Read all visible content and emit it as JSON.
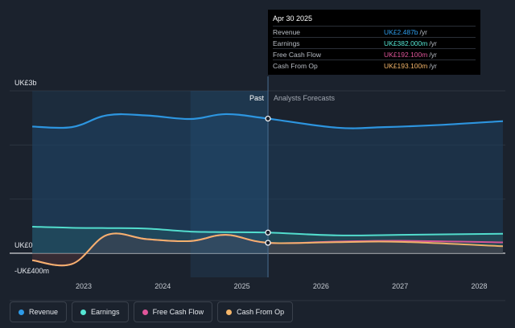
{
  "chart_data": {
    "type": "area",
    "y_labels": {
      "top": "UK£3b",
      "zero": "UK£0",
      "bottom": "-UK£400m"
    },
    "ylim": [
      -400,
      3000
    ],
    "x_ticks": [
      "2023",
      "2024",
      "2025",
      "2026",
      "2027",
      "2028"
    ],
    "divider_labels": {
      "past": "Past",
      "forecast": "Analysts Forecasts"
    },
    "divider_date": 2025.33,
    "series": [
      {
        "name": "Revenue",
        "color": "#2e9be8",
        "points": [
          [
            2022.35,
            2340
          ],
          [
            2022.85,
            2330
          ],
          [
            2023.3,
            2550
          ],
          [
            2023.8,
            2545
          ],
          [
            2024.35,
            2480
          ],
          [
            2024.8,
            2570
          ],
          [
            2025.33,
            2487
          ],
          [
            2026.2,
            2320
          ],
          [
            2026.8,
            2330
          ],
          [
            2027.5,
            2370
          ],
          [
            2028.3,
            2440
          ]
        ]
      },
      {
        "name": "Earnings",
        "color": "#55e6d4",
        "points": [
          [
            2022.35,
            490
          ],
          [
            2022.85,
            470
          ],
          [
            2023.3,
            465
          ],
          [
            2023.8,
            455
          ],
          [
            2024.35,
            400
          ],
          [
            2024.8,
            390
          ],
          [
            2025.33,
            382
          ],
          [
            2026.2,
            330
          ],
          [
            2027.0,
            340
          ],
          [
            2028.3,
            360
          ]
        ]
      },
      {
        "name": "Free Cash Flow",
        "color": "#e0559a",
        "points": [
          [
            2022.35,
            -130
          ],
          [
            2022.85,
            -200
          ],
          [
            2023.3,
            340
          ],
          [
            2023.8,
            260
          ],
          [
            2024.35,
            225
          ],
          [
            2024.8,
            340
          ],
          [
            2025.33,
            192
          ],
          [
            2026.2,
            215
          ],
          [
            2027.0,
            230
          ],
          [
            2028.3,
            200
          ]
        ]
      },
      {
        "name": "Cash From Op",
        "color": "#f5b66a",
        "points": [
          [
            2022.35,
            -130
          ],
          [
            2022.85,
            -200
          ],
          [
            2023.3,
            340
          ],
          [
            2023.8,
            260
          ],
          [
            2024.35,
            225
          ],
          [
            2024.8,
            340
          ],
          [
            2025.33,
            193
          ],
          [
            2026.2,
            205
          ],
          [
            2027.0,
            210
          ],
          [
            2028.3,
            130
          ]
        ]
      }
    ]
  },
  "tooltip": {
    "date": "Apr 30 2025",
    "rows": [
      {
        "label": "Revenue",
        "value": "UK£2.487b",
        "unit": "/yr",
        "color": "#2e9be8"
      },
      {
        "label": "Earnings",
        "value": "UK£382.000m",
        "unit": "/yr",
        "color": "#55e6d4"
      },
      {
        "label": "Free Cash Flow",
        "value": "UK£192.100m",
        "unit": "/yr",
        "color": "#e0559a"
      },
      {
        "label": "Cash From Op",
        "value": "UK£193.100m",
        "unit": "/yr",
        "color": "#f5b66a"
      }
    ]
  },
  "legend": [
    {
      "label": "Revenue",
      "color": "#2e9be8"
    },
    {
      "label": "Earnings",
      "color": "#55e6d4"
    },
    {
      "label": "Free Cash Flow",
      "color": "#e0559a"
    },
    {
      "label": "Cash From Op",
      "color": "#f5b66a"
    }
  ]
}
